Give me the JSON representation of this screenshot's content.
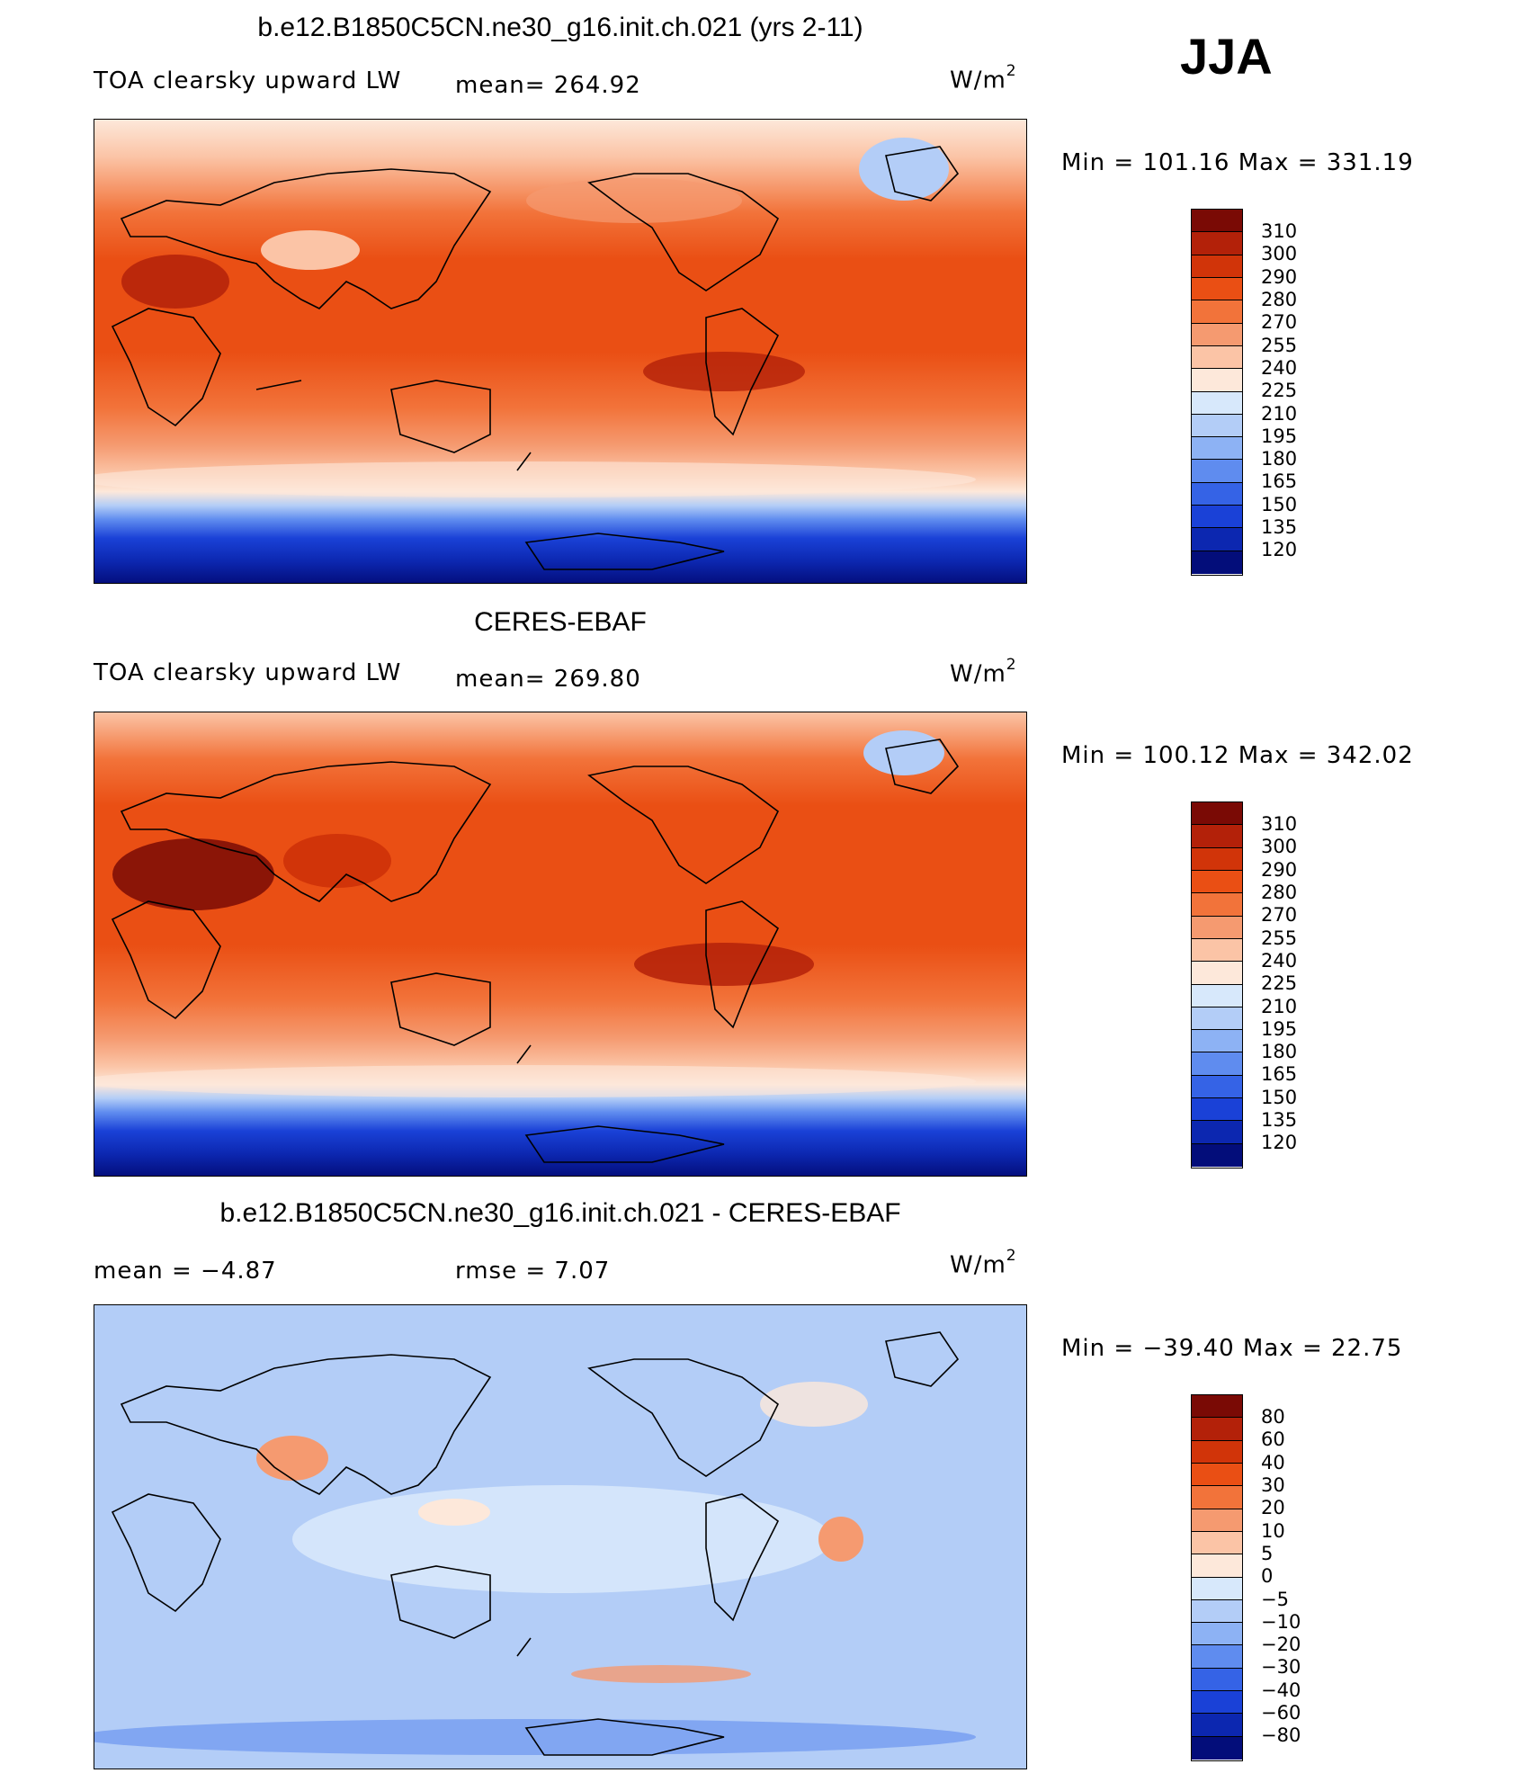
{
  "season": "JJA",
  "panels": [
    {
      "title": "b.e12.B1850C5CN.ne30_g16.init.ch.021 (yrs 2-11)",
      "left_label": "TOA clearsky upward LW",
      "stat_label": "mean=  264.92",
      "units": "W/m",
      "units_sup": "2",
      "minmax": "Min  =  101.16  Max  =  331.19",
      "type": "abs",
      "colorbar_labels": [
        "310",
        "300",
        "290",
        "280",
        "270",
        "255",
        "240",
        "225",
        "210",
        "195",
        "180",
        "165",
        "150",
        "135",
        "120"
      ]
    },
    {
      "title": "CERES-EBAF",
      "left_label": "TOA clearsky upward LW",
      "stat_label": "mean=  269.80",
      "units": "W/m",
      "units_sup": "2",
      "minmax": "Min  =  100.12  Max  =  342.02",
      "type": "abs",
      "colorbar_labels": [
        "310",
        "300",
        "290",
        "280",
        "270",
        "255",
        "240",
        "225",
        "210",
        "195",
        "180",
        "165",
        "150",
        "135",
        "120"
      ]
    },
    {
      "title": "b.e12.B1850C5CN.ne30_g16.init.ch.021 - CERES-EBAF",
      "left_label": "mean  =    −4.87",
      "stat_label": "rmse  =     7.07",
      "units": "W/m",
      "units_sup": "2",
      "minmax": "Min  =  −39.40  Max  =    22.75",
      "type": "diff",
      "colorbar_labels": [
        "80",
        "60",
        "40",
        "30",
        "20",
        "10",
        "5",
        "0",
        "−5",
        "−10",
        "−20",
        "−30",
        "−40",
        "−60",
        "−80"
      ]
    }
  ],
  "colors": {
    "abs_scale": [
      "#7a0a05",
      "#b32109",
      "#d13409",
      "#ea4f14",
      "#f2733a",
      "#f59a70",
      "#fbc4a6",
      "#fde8da",
      "#d7e8fb",
      "#b3cdf7",
      "#8db2f4",
      "#5f8cef",
      "#3563e6",
      "#1a41d7",
      "#0c27b0",
      "#030d7a"
    ],
    "diff_scale": [
      "#7a0a05",
      "#b32109",
      "#d13409",
      "#ea4f14",
      "#f2733a",
      "#f59a70",
      "#fbc4a6",
      "#fde8da",
      "#d7e8fb",
      "#b3cdf7",
      "#8db2f4",
      "#5f8cef",
      "#3563e6",
      "#1a41d7",
      "#0c27b0",
      "#030d7a"
    ]
  }
}
